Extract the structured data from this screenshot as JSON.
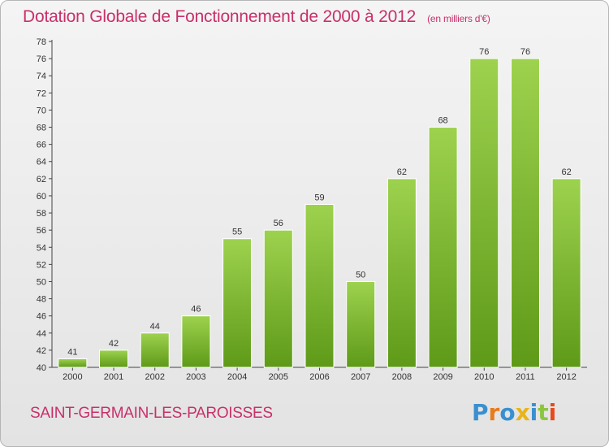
{
  "header": {
    "title": "Dotation Globale de Fonctionnement de 2000 à 2012",
    "subtitle": "(en milliers d'€)"
  },
  "footer": {
    "commune": "SAINT-GERMAIN-LES-PAROISSES",
    "logo": "Proxiti"
  },
  "colors": {
    "title": "#c8306a",
    "bar_light": "#9dd24e",
    "bar_dark": "#5e9a18",
    "logo": [
      "#3a8fd0",
      "#e87b1a",
      "#3a8fd0",
      "#e8b41a",
      "#3a8fd0",
      "#8cc63f",
      "#e84a1a"
    ]
  },
  "chart_data": {
    "type": "bar",
    "title": "Dotation Globale de Fonctionnement de 2000 à 2012",
    "xlabel": "",
    "ylabel": "",
    "categories": [
      "2000",
      "2001",
      "2002",
      "2003",
      "2004",
      "2005",
      "2006",
      "2007",
      "2008",
      "2009",
      "2010",
      "2011",
      "2012"
    ],
    "values": [
      41,
      42,
      44,
      46,
      55,
      56,
      59,
      50,
      62,
      68,
      76,
      76,
      62
    ],
    "ylim": [
      40,
      78
    ],
    "yticks": [
      40,
      42,
      44,
      46,
      48,
      50,
      52,
      54,
      56,
      58,
      60,
      62,
      64,
      66,
      68,
      70,
      72,
      74,
      76,
      78
    ],
    "grid": false
  }
}
